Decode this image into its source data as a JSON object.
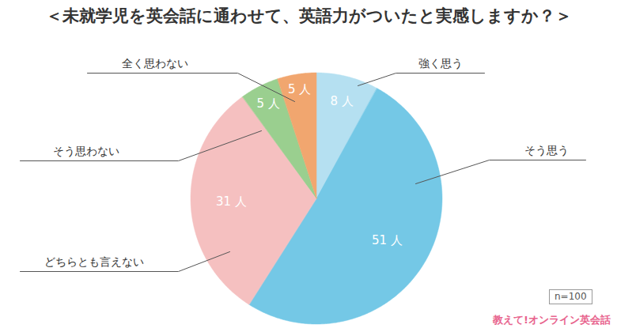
{
  "chart_data": {
    "type": "pie",
    "title": "＜未就学児を英会話に通わせて、英語力がついたと実感しますか？＞",
    "categories": [
      "強く思う",
      "そう思う",
      "どちらとも言えない",
      "そう思わない",
      "全く思わない"
    ],
    "values": [
      8,
      51,
      31,
      5,
      5
    ],
    "value_labels": [
      "8 人",
      "51 人",
      "31 人",
      "5 人",
      "5 人"
    ],
    "colors": [
      "#b5e0f1",
      "#74c8e6",
      "#f5c0c0",
      "#9acf8f",
      "#f1a66f"
    ],
    "data_labels": true,
    "annotations": [
      "n=100",
      "教えて!オンライン英会話"
    ]
  }
}
